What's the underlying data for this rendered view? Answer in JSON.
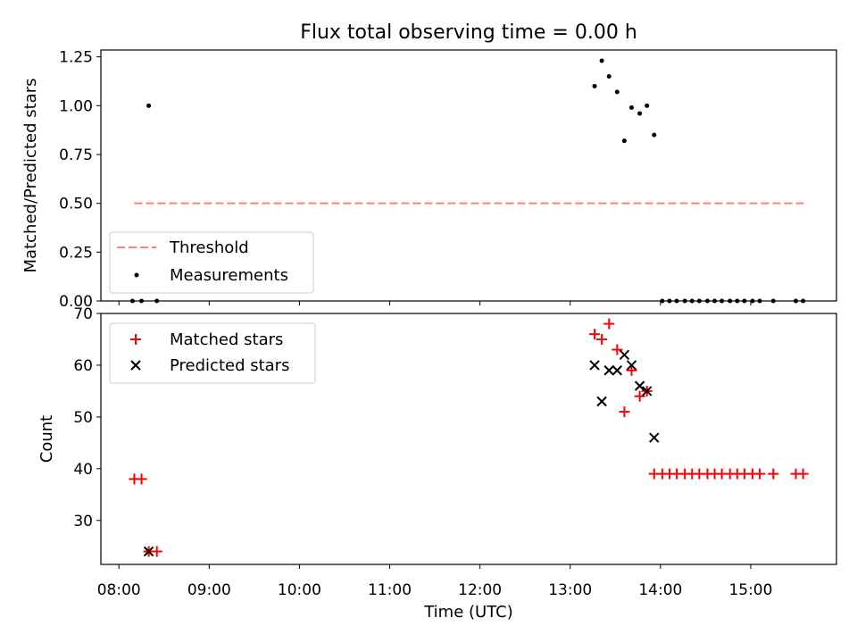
{
  "chart_data": [
    {
      "type": "scatter",
      "title": "Flux total observing time = 0.00 h",
      "xlabel": "",
      "ylabel": "Matched/Predicted stars",
      "xlim": [
        7.8,
        15.95
      ],
      "ylim": [
        0,
        1.285
      ],
      "yticks": [
        "0.00",
        "0.25",
        "0.50",
        "0.75",
        "1.00",
        "1.25"
      ],
      "ytick_values": [
        0,
        0.25,
        0.5,
        0.75,
        1.0,
        1.25
      ],
      "xtick_values": [
        8,
        9,
        10,
        11,
        12,
        13,
        14,
        15
      ],
      "legend_position": "lower-left",
      "series": [
        {
          "name": "Threshold",
          "style": "dashed-line",
          "color": "#ff7f7f",
          "x": [
            8.17,
            15.6
          ],
          "y": [
            0.5,
            0.5
          ]
        },
        {
          "name": "Measurements",
          "style": "dot",
          "color": "#000000",
          "x": [
            8.15,
            8.25,
            8.33,
            8.42,
            13.27,
            13.35,
            13.43,
            13.52,
            13.6,
            13.68,
            13.77,
            13.85,
            13.93,
            14.02,
            14.1,
            14.18,
            14.27,
            14.35,
            14.43,
            14.52,
            14.6,
            14.68,
            14.77,
            14.85,
            14.93,
            15.02,
            15.1,
            15.25,
            15.5,
            15.58
          ],
          "y": [
            0,
            0,
            1.0,
            0,
            1.1,
            1.23,
            1.15,
            1.07,
            0.82,
            0.99,
            0.96,
            1.0,
            0.85,
            0,
            0,
            0,
            0,
            0,
            0,
            0,
            0,
            0,
            0,
            0,
            0,
            0,
            0,
            0,
            0,
            0
          ]
        }
      ]
    },
    {
      "type": "scatter",
      "title": "",
      "xlabel": "Time (UTC)",
      "ylabel": "Count",
      "xlim": [
        7.8,
        15.95
      ],
      "ylim": [
        21.5,
        70
      ],
      "xticks": [
        "08:00",
        "09:00",
        "10:00",
        "11:00",
        "12:00",
        "13:00",
        "14:00",
        "15:00"
      ],
      "xtick_values": [
        8,
        9,
        10,
        11,
        12,
        13,
        14,
        15
      ],
      "yticks": [
        "30",
        "40",
        "50",
        "60",
        "70"
      ],
      "ytick_values": [
        30,
        40,
        50,
        60,
        70
      ],
      "legend_position": "upper-left",
      "series": [
        {
          "name": "Matched stars",
          "marker": "plus",
          "color": "#ff0000",
          "x": [
            8.17,
            8.25,
            8.33,
            8.42,
            13.27,
            13.35,
            13.43,
            13.52,
            13.6,
            13.68,
            13.77,
            13.85,
            13.93,
            14.02,
            14.1,
            14.18,
            14.27,
            14.35,
            14.43,
            14.52,
            14.6,
            14.68,
            14.77,
            14.85,
            14.93,
            15.02,
            15.1,
            15.25,
            15.5,
            15.58
          ],
          "y": [
            38,
            38,
            24,
            24,
            66,
            65,
            68,
            63,
            51,
            59,
            54,
            55,
            39,
            39,
            39,
            39,
            39,
            39,
            39,
            39,
            39,
            39,
            39,
            39,
            39,
            39,
            39,
            39,
            39,
            39
          ]
        },
        {
          "name": "Predicted stars",
          "marker": "x",
          "color": "#000000",
          "x": [
            8.33,
            13.27,
            13.35,
            13.43,
            13.52,
            13.6,
            13.68,
            13.77,
            13.85,
            13.93
          ],
          "y": [
            24,
            60,
            53,
            59,
            59,
            62,
            60,
            56,
            55,
            46
          ]
        }
      ]
    }
  ]
}
